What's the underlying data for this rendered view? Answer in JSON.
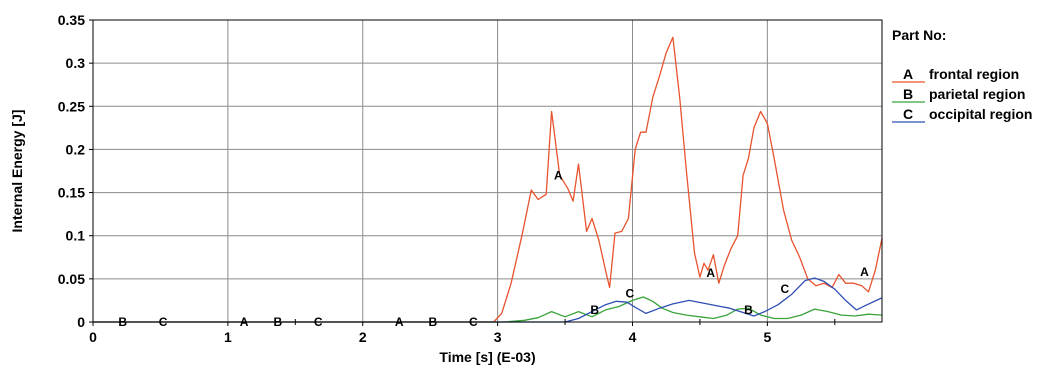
{
  "chart_data": {
    "type": "line",
    "title": "",
    "xlabel": "Time [s] (E-03)",
    "ylabel": "Internal Energy [J]",
    "xlim": [
      0,
      5.85
    ],
    "ylim": [
      0,
      0.35
    ],
    "x_ticks": [
      0,
      1,
      2,
      3,
      4,
      5
    ],
    "x_tick_labels": [
      "0",
      "1",
      "2",
      "3",
      "4",
      "5"
    ],
    "y_ticks": [
      0,
      0.05,
      0.1,
      0.15,
      0.2,
      0.25,
      0.3,
      0.35
    ],
    "y_tick_labels": [
      "0",
      "0.05",
      "0.1",
      "0.15",
      "0.2",
      "0.25",
      "0.3",
      "0.35"
    ],
    "grid": true,
    "legend": {
      "title": "Part No:",
      "placement": "right"
    },
    "series": [
      {
        "name": "frontal region",
        "marker": "A",
        "color": "#e8532e",
        "points": [
          [
            0,
            0
          ],
          [
            2.97,
            0
          ],
          [
            3.03,
            0.01
          ],
          [
            3.1,
            0.045
          ],
          [
            3.18,
            0.1
          ],
          [
            3.25,
            0.153
          ],
          [
            3.3,
            0.142
          ],
          [
            3.36,
            0.148
          ],
          [
            3.4,
            0.244
          ],
          [
            3.46,
            0.17
          ],
          [
            3.52,
            0.155
          ],
          [
            3.56,
            0.14
          ],
          [
            3.6,
            0.183
          ],
          [
            3.66,
            0.105
          ],
          [
            3.7,
            0.12
          ],
          [
            3.75,
            0.095
          ],
          [
            3.8,
            0.06
          ],
          [
            3.83,
            0.04
          ],
          [
            3.87,
            0.103
          ],
          [
            3.92,
            0.105
          ],
          [
            3.97,
            0.12
          ],
          [
            4.02,
            0.2
          ],
          [
            4.06,
            0.22
          ],
          [
            4.1,
            0.22
          ],
          [
            4.15,
            0.26
          ],
          [
            4.2,
            0.285
          ],
          [
            4.25,
            0.312
          ],
          [
            4.3,
            0.33
          ],
          [
            4.35,
            0.26
          ],
          [
            4.4,
            0.175
          ],
          [
            4.46,
            0.08
          ],
          [
            4.5,
            0.052
          ],
          [
            4.53,
            0.068
          ],
          [
            4.56,
            0.06
          ],
          [
            4.6,
            0.078
          ],
          [
            4.64,
            0.045
          ],
          [
            4.68,
            0.065
          ],
          [
            4.73,
            0.085
          ],
          [
            4.78,
            0.1
          ],
          [
            4.82,
            0.17
          ],
          [
            4.86,
            0.19
          ],
          [
            4.9,
            0.225
          ],
          [
            4.95,
            0.244
          ],
          [
            5.0,
            0.23
          ],
          [
            5.05,
            0.19
          ],
          [
            5.12,
            0.13
          ],
          [
            5.18,
            0.095
          ],
          [
            5.24,
            0.075
          ],
          [
            5.3,
            0.05
          ],
          [
            5.36,
            0.042
          ],
          [
            5.42,
            0.045
          ],
          [
            5.48,
            0.04
          ],
          [
            5.53,
            0.055
          ],
          [
            5.58,
            0.045
          ],
          [
            5.64,
            0.045
          ],
          [
            5.7,
            0.042
          ],
          [
            5.75,
            0.035
          ],
          [
            5.8,
            0.06
          ],
          [
            5.85,
            0.097
          ]
        ]
      },
      {
        "name": "parietal region",
        "marker": "B",
        "color": "#3aa33a",
        "points": [
          [
            0,
            0
          ],
          [
            3.05,
            0
          ],
          [
            3.2,
            0.002
          ],
          [
            3.3,
            0.005
          ],
          [
            3.4,
            0.012
          ],
          [
            3.5,
            0.006
          ],
          [
            3.6,
            0.012
          ],
          [
            3.7,
            0.006
          ],
          [
            3.8,
            0.014
          ],
          [
            3.9,
            0.018
          ],
          [
            4.0,
            0.025
          ],
          [
            4.08,
            0.029
          ],
          [
            4.15,
            0.024
          ],
          [
            4.22,
            0.016
          ],
          [
            4.3,
            0.011
          ],
          [
            4.4,
            0.008
          ],
          [
            4.5,
            0.006
          ],
          [
            4.6,
            0.004
          ],
          [
            4.7,
            0.008
          ],
          [
            4.78,
            0.015
          ],
          [
            4.86,
            0.016
          ],
          [
            4.95,
            0.008
          ],
          [
            5.05,
            0.004
          ],
          [
            5.15,
            0.004
          ],
          [
            5.25,
            0.008
          ],
          [
            5.35,
            0.015
          ],
          [
            5.45,
            0.012
          ],
          [
            5.55,
            0.008
          ],
          [
            5.65,
            0.007
          ],
          [
            5.75,
            0.009
          ],
          [
            5.85,
            0.008
          ]
        ]
      },
      {
        "name": "occipital region",
        "marker": "C",
        "color": "#2f4fb4",
        "points": [
          [
            0,
            0
          ],
          [
            3.5,
            0
          ],
          [
            3.6,
            0.004
          ],
          [
            3.7,
            0.012
          ],
          [
            3.8,
            0.02
          ],
          [
            3.88,
            0.024
          ],
          [
            3.96,
            0.023
          ],
          [
            4.02,
            0.017
          ],
          [
            4.1,
            0.01
          ],
          [
            4.2,
            0.016
          ],
          [
            4.3,
            0.021
          ],
          [
            4.42,
            0.025
          ],
          [
            4.52,
            0.022
          ],
          [
            4.62,
            0.019
          ],
          [
            4.72,
            0.016
          ],
          [
            4.82,
            0.011
          ],
          [
            4.9,
            0.007
          ],
          [
            4.98,
            0.012
          ],
          [
            5.08,
            0.02
          ],
          [
            5.18,
            0.032
          ],
          [
            5.28,
            0.048
          ],
          [
            5.35,
            0.051
          ],
          [
            5.42,
            0.047
          ],
          [
            5.5,
            0.038
          ],
          [
            5.58,
            0.025
          ],
          [
            5.66,
            0.014
          ],
          [
            5.74,
            0.02
          ],
          [
            5.82,
            0.026
          ],
          [
            5.85,
            0.028
          ]
        ]
      }
    ],
    "markers": [
      {
        "label": "B",
        "x": 0.22,
        "y": 0
      },
      {
        "label": "C",
        "x": 0.52,
        "y": 0
      },
      {
        "label": "A",
        "x": 1.12,
        "y": 0
      },
      {
        "label": "B",
        "x": 1.37,
        "y": 0
      },
      {
        "label": "C",
        "x": 1.67,
        "y": 0
      },
      {
        "label": "A",
        "x": 2.27,
        "y": 0
      },
      {
        "label": "B",
        "x": 2.52,
        "y": 0
      },
      {
        "label": "C",
        "x": 2.82,
        "y": 0
      },
      {
        "label": "A",
        "x": 3.45,
        "y": 0.17
      },
      {
        "label": "B",
        "x": 3.72,
        "y": 0.014
      },
      {
        "label": "C",
        "x": 3.98,
        "y": 0.033
      },
      {
        "label": "A",
        "x": 4.58,
        "y": 0.057
      },
      {
        "label": "B",
        "x": 4.86,
        "y": 0.014
      },
      {
        "label": "C",
        "x": 5.13,
        "y": 0.038
      },
      {
        "label": "A",
        "x": 5.72,
        "y": 0.058
      }
    ]
  }
}
